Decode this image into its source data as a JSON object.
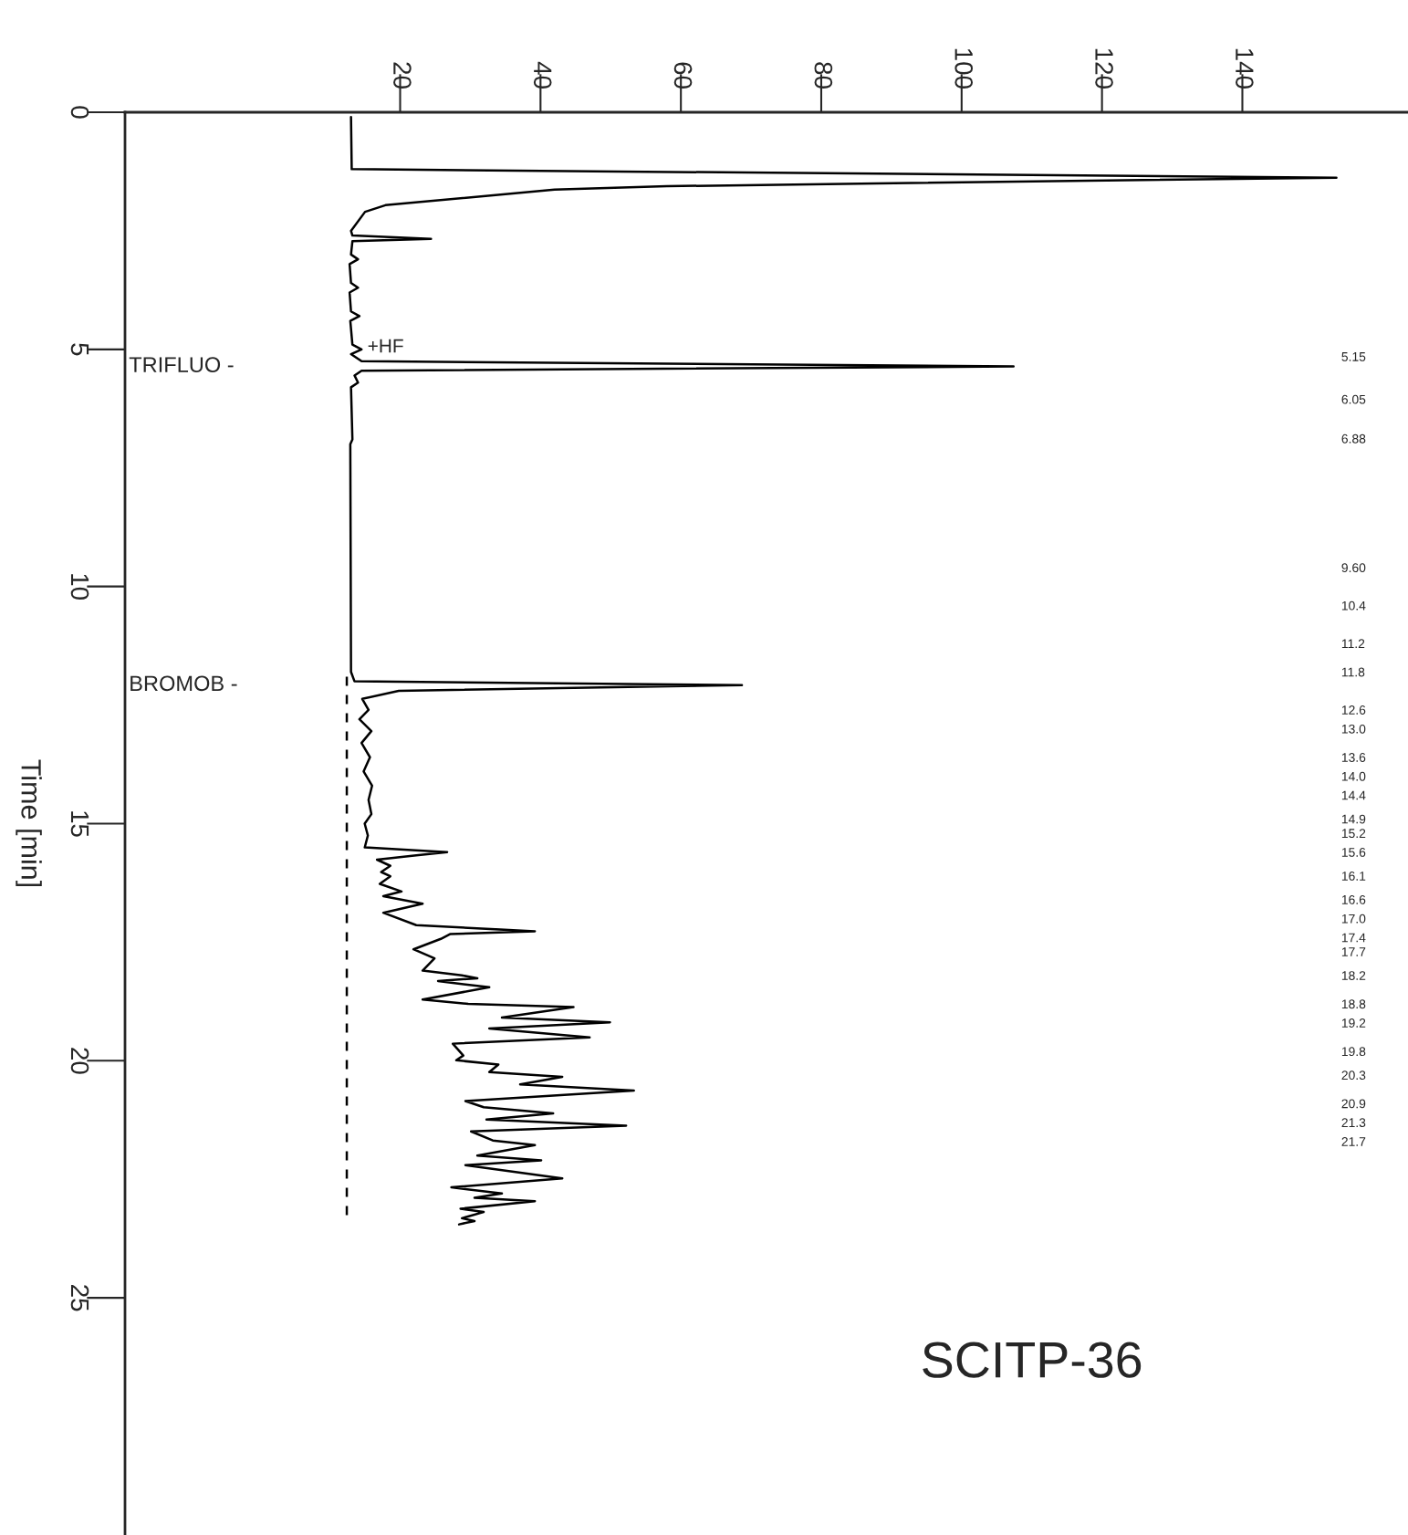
{
  "chart_data": {
    "type": "line",
    "ylabel": "Time [min]",
    "xlim": [
      -19.2,
      163.6
    ],
    "ylim": [
      30,
      0
    ],
    "xticks": [
      20,
      40,
      60,
      80,
      100,
      120,
      140
    ],
    "yticks": [
      0,
      5,
      10,
      15,
      20,
      25
    ],
    "grid": false,
    "legend": false,
    "marker": "none",
    "series": [
      {
        "color": "#000000",
        "line_style": "solid",
        "x": [
          13.0,
          13.1,
          153.4,
          87.9,
          58,
          42,
          17.9,
          15,
          13,
          13.2,
          24.4,
          13.2,
          13.0,
          14.0,
          12.8,
          13.0,
          14.0,
          12.8,
          13.0,
          14.2,
          12.9,
          13.2,
          14.5,
          13.0,
          14.5,
          107.4,
          14.5,
          13.5,
          14.0,
          13.0,
          13.2,
          12.9,
          13.0,
          13.5,
          68.7,
          19.8,
          14.6,
          15.5,
          14.2,
          15.9,
          14.5,
          15.7,
          14.8,
          16.0,
          15.5,
          15.9,
          14.95,
          15.4,
          14.96,
          26.7,
          22.3,
          16.7,
          18.6,
          17.3,
          18.6,
          17.1,
          20.2,
          17.6,
          23.2,
          17.6,
          22.3,
          39.2,
          27.1,
          25.8,
          21.9,
          24.9,
          23.2,
          28.8,
          31.0,
          25.4,
          32.7,
          23.2,
          29.7,
          44.7,
          34.5,
          49.9,
          32.7,
          47.0,
          27.5,
          29.0,
          28.0,
          34.0,
          32.7,
          43.1,
          37.1,
          53.3,
          29.3,
          31.9,
          41.8,
          32.3,
          52.2,
          30.1,
          33.2,
          39.2,
          31.0,
          40.1,
          29.3,
          43.1,
          27.3,
          34.5,
          30.6,
          39.2,
          28.6,
          31.9,
          28.8,
          30.6,
          28.4
        ],
        "values": [
          0.1,
          1.2,
          1.38,
          1.5,
          1.56,
          1.63,
          1.96,
          2.1,
          2.5,
          2.6,
          2.67,
          2.72,
          3.0,
          3.1,
          3.2,
          3.6,
          3.7,
          3.8,
          4.2,
          4.3,
          4.4,
          4.9,
          5.0,
          5.1,
          5.25,
          5.36,
          5.45,
          5.55,
          5.7,
          5.8,
          6.9,
          7.0,
          11.8,
          12.0,
          12.08,
          12.2,
          12.37,
          12.6,
          12.8,
          13.05,
          13.3,
          13.6,
          13.9,
          14.2,
          14.5,
          14.8,
          15.0,
          15.25,
          15.5,
          15.6,
          15.67,
          15.76,
          15.89,
          16.02,
          16.11,
          16.27,
          16.43,
          16.53,
          16.69,
          16.88,
          17.14,
          17.27,
          17.33,
          17.43,
          17.65,
          17.84,
          18.1,
          18.2,
          18.26,
          18.32,
          18.45,
          18.71,
          18.8,
          18.87,
          19.09,
          19.19,
          19.32,
          19.51,
          19.64,
          19.89,
          19.99,
          20.08,
          20.24,
          20.34,
          20.5,
          20.63,
          20.85,
          20.98,
          21.11,
          21.24,
          21.37,
          21.49,
          21.68,
          21.78,
          22.0,
          22.1,
          22.2,
          22.48,
          22.67,
          22.8,
          22.89,
          22.96,
          23.12,
          23.19,
          23.32,
          23.38,
          23.45
        ]
      },
      {
        "color": "#000000",
        "line_style": "dashed",
        "x": [
          12.4,
          12.4
        ],
        "values": [
          11.9,
          23.3
        ]
      }
    ],
    "y2lim": [
      30,
      0
    ],
    "y2ticks": [
      5.15,
      6.05,
      6.88,
      {
        "value": 9.6,
        "label": "9.60"
      },
      10.4,
      11.2,
      11.8,
      12.6,
      {
        "value": 13,
        "label": "13.0"
      },
      13.6,
      {
        "value": 14,
        "label": "14.0"
      },
      14.4,
      14.9,
      15.2,
      15.6,
      16.1,
      16.6,
      {
        "value": 17,
        "label": "17.0"
      },
      17.4,
      17.7,
      18.2,
      18.8,
      19.2,
      19.8,
      20.3,
      20.9,
      21.3,
      21.7
    ],
    "annotations": [
      "TRIFLUO -",
      "BROMOB -",
      "SCITP-36",
      {
        "text": "+HF",
        "x": 14.8,
        "y": 4.96
      }
    ]
  }
}
